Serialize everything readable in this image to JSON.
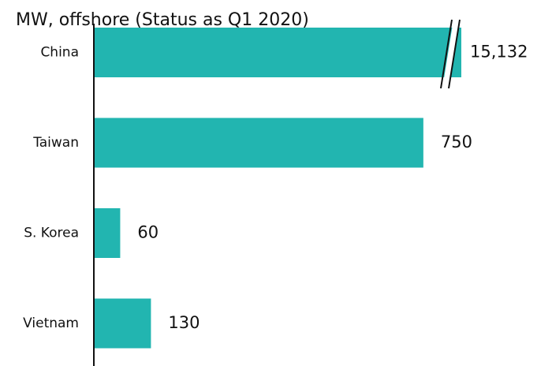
{
  "chart_data": {
    "type": "bar",
    "orientation": "horizontal",
    "title": "MW, offshore (Status as Q1 2020)",
    "categories": [
      "China",
      "Taiwan",
      "S. Korea",
      "Vietnam"
    ],
    "values": [
      15132,
      750,
      60,
      130
    ],
    "value_labels": [
      "15,132",
      "750",
      "60",
      "130"
    ],
    "color": "#22b5b0",
    "xlim": [
      0,
      840
    ],
    "axis_break": true
  }
}
